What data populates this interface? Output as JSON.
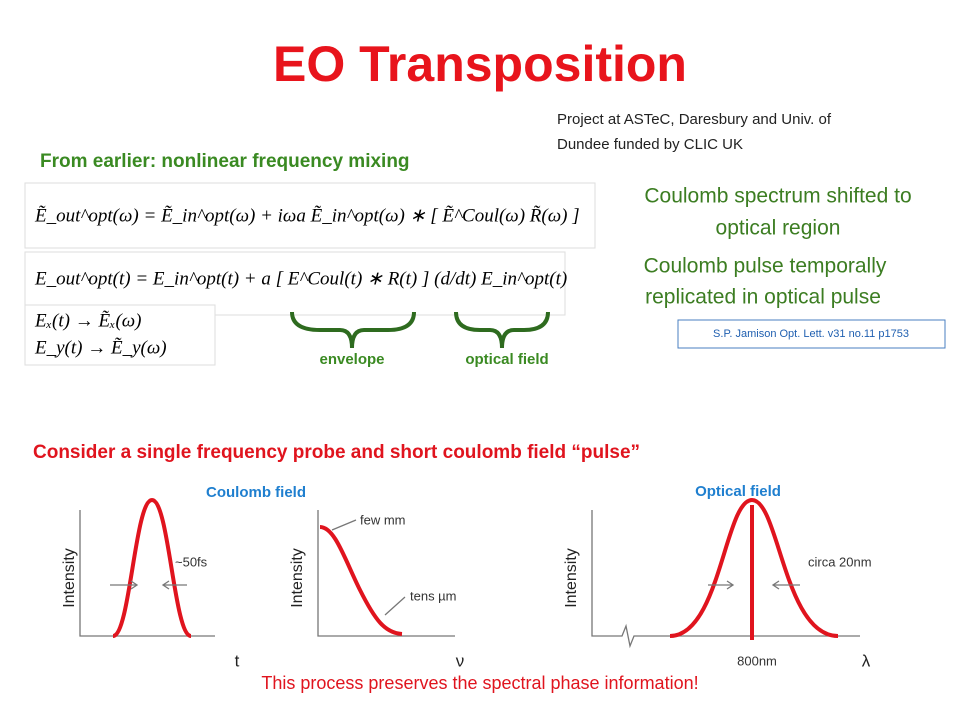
{
  "title": "EO Transposition",
  "note": [
    "Project at ASTeC, Daresbury and Univ. of",
    "Dundee funded by CLIC UK"
  ],
  "subtitle": "From earlier: nonlinear frequency mixing",
  "equations": [
    "Ẽ_out^opt(ω) = Ẽ_in^opt(ω) + iωa Ẽ_in^opt(ω) ∗ [ Ẽ^Coul(ω) R̃(ω) ]",
    "E_out^opt(t) = E_in^opt(t) + a [ E^Coul(t) ∗ R(t) ] (d/dt) E_in^opt(t)",
    "Eₓ(t)  →  Ẽₓ(ω)",
    "E_y(t)  →  Ẽ_y(ω)"
  ],
  "statements": [
    [
      "Coulomb spectrum shifted to",
      "optical region"
    ],
    [
      "Coulomb pulse temporally",
      "replicated in optical pulse"
    ]
  ],
  "reference": "S.P. Jamison Opt. Lett. v31 no.11 p1753",
  "brace_labels": [
    "envelope",
    "optical field"
  ],
  "section": "Consider a single frequency probe and short coulomb field “pulse”",
  "plot_titles": [
    "Coulomb field",
    "Optical field"
  ],
  "axis_labels": {
    "y": [
      "Intensity",
      "Intensity",
      "Intensity"
    ],
    "x": [
      "t",
      "ν",
      "λ"
    ]
  },
  "annotations": [
    "~50fs",
    "few mm",
    "tens µm",
    "circa 20nm",
    "800nm"
  ],
  "footer": "This process preserves the spectral phase information!"
}
